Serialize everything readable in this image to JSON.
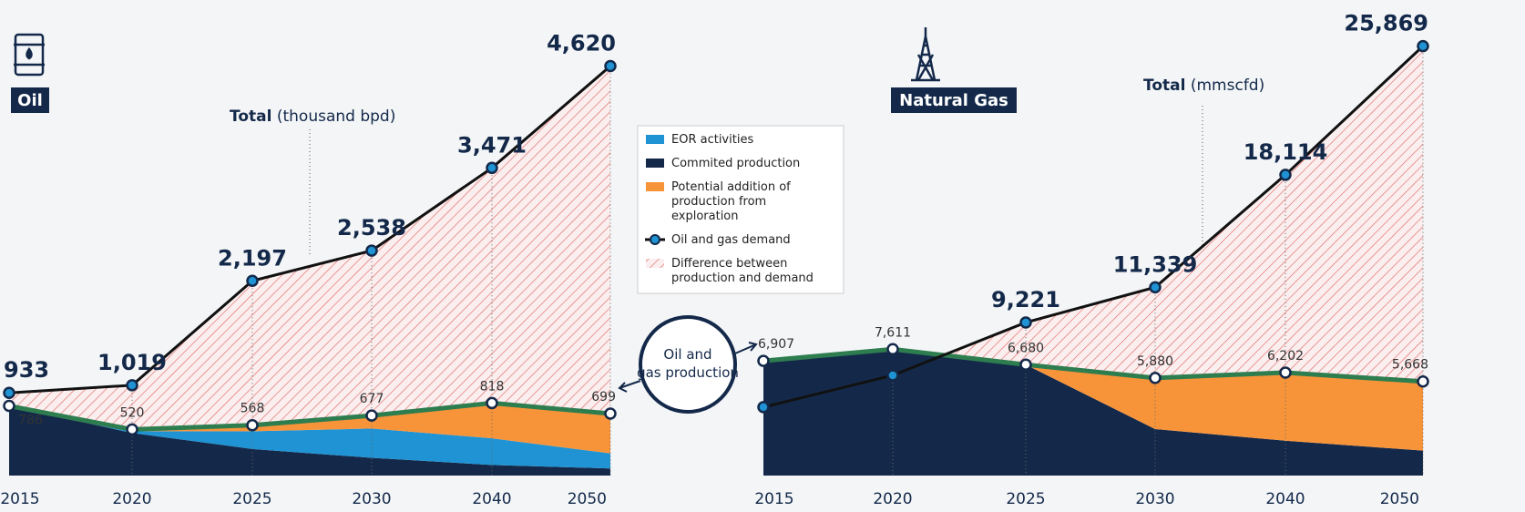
{
  "chart_data": [
    {
      "type": "area",
      "title": "Oil",
      "total_label": "Total",
      "total_unit": "(thousand bpd)",
      "categories": [
        "2015",
        "2020",
        "2025",
        "2030",
        "2040",
        "2050"
      ],
      "ylim": [
        0,
        4800
      ],
      "difference": {
        "name": "Difference between production and demand",
        "color": "#e06a6a"
      },
      "series": [
        {
          "name": "Commited production",
          "color": "#14294a",
          "role": "stack",
          "values": [
            786,
            480,
            300,
            200,
            120,
            80
          ]
        },
        {
          "name": "EOR activities",
          "color": "#1f93d3",
          "role": "stack",
          "values": [
            0,
            20,
            200,
            330,
            300,
            170
          ]
        },
        {
          "name": "Potential addition of production from exploration",
          "color": "#f7943a",
          "role": "stack",
          "values": [
            0,
            20,
            68,
            147,
            398,
            449
          ]
        },
        {
          "name": "Oil and gas demand",
          "color": "#1f93d3",
          "role": "demand",
          "values": [
            933,
            1019,
            2197,
            2538,
            3471,
            4620
          ],
          "value_labels": [
            "933",
            "1,019",
            "2,197",
            "2,538",
            "3,471",
            "4,620"
          ]
        },
        {
          "name": "Oil and gas production",
          "color": "#2e7d4f",
          "role": "production",
          "values": [
            786,
            520,
            568,
            677,
            818,
            699
          ],
          "value_labels": [
            "786",
            "520",
            "568",
            "677",
            "818",
            "699"
          ]
        }
      ]
    },
    {
      "type": "area",
      "title": "Natural Gas",
      "total_label": "Total",
      "total_unit": "(mmscfd)",
      "categories": [
        "2015",
        "2020",
        "2025",
        "2030",
        "2040",
        "2050"
      ],
      "ylim": [
        0,
        27000
      ],
      "series": [
        {
          "name": "Commited production",
          "color": "#14294a",
          "role": "stack",
          "values": [
            6907,
            7611,
            6680,
            2800,
            2100,
            1500
          ]
        },
        {
          "name": "Potential addition of production from exploration",
          "color": "#f7943a",
          "role": "stack",
          "values": [
            0,
            0,
            0,
            3080,
            4102,
            4168
          ]
        },
        {
          "name": "Oil and gas demand",
          "color": "#1f93d3",
          "role": "demand",
          "values": [
            4121,
            6038,
            9221,
            11339,
            18114,
            25869
          ],
          "value_labels": [
            "4,121",
            "6,038",
            "9,221",
            "11,339",
            "18,114",
            "25,869"
          ]
        },
        {
          "name": "Oil and gas production",
          "color": "#2e7d4f",
          "role": "production",
          "values": [
            6907,
            7611,
            6680,
            5880,
            6202,
            5668
          ],
          "value_labels": [
            "6,907",
            "7,611",
            "6,680",
            "5,880",
            "6,202",
            "5,668"
          ]
        }
      ]
    }
  ]
}
